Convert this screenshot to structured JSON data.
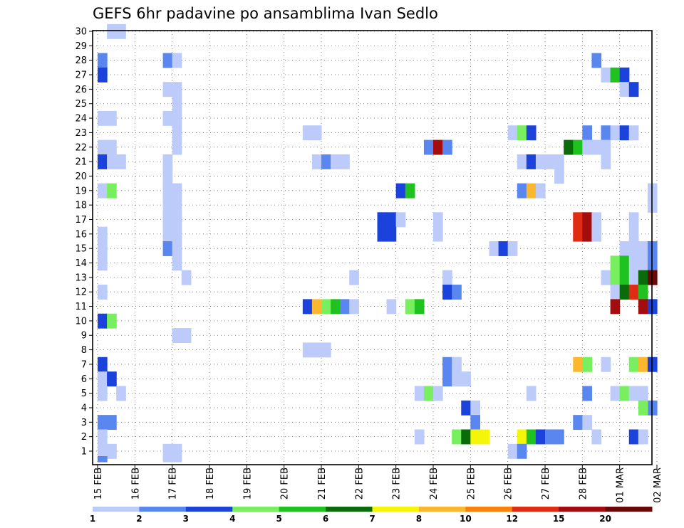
{
  "chart_data": {
    "type": "heatmap",
    "title": "GEFS 6hr padavine po ansamblima Ivan Sedlo",
    "xlabel": "",
    "ylabel": "",
    "x_tick_labels": [
      "15 FEB",
      "16 FEB",
      "17 FEB",
      "18 FEB",
      "19 FEB",
      "20 FEB",
      "21 FEB",
      "22 FEB",
      "23 FEB",
      "24 FEB",
      "25 FEB",
      "26 FEB",
      "27 FEB",
      "28 FEB",
      "01 MAR",
      "02 MAR"
    ],
    "y_tick_labels": [
      "1",
      "2",
      "3",
      "4",
      "5",
      "6",
      "7",
      "8",
      "9",
      "10",
      "11",
      "12",
      "13",
      "14",
      "15",
      "16",
      "17",
      "18",
      "19",
      "20",
      "21",
      "22",
      "23",
      "24",
      "25",
      "26",
      "27",
      "28",
      "29",
      "30"
    ],
    "y_range": [
      1,
      30
    ],
    "x_steps_per_day": 4,
    "x_total_steps": 60,
    "grid": "dotted",
    "colorbar": {
      "levels": [
        "1",
        "2",
        "3",
        "4",
        "5",
        "6",
        "7",
        "8",
        "10",
        "12",
        "15",
        "20"
      ],
      "colors": [
        "#bccbf9",
        "#5a86ef",
        "#1c42dc",
        "#78ef5f",
        "#1fc21e",
        "#0a6b0a",
        "#f5f50a",
        "#fbb82e",
        "#f8820c",
        "#e02c14",
        "#a40d0d",
        "#6b0707"
      ]
    },
    "cells": [
      [
        1,
        30,
        0
      ],
      [
        2,
        30,
        0
      ],
      [
        0,
        28,
        1
      ],
      [
        7,
        28,
        1
      ],
      [
        8,
        28,
        0
      ],
      [
        53,
        28,
        1
      ],
      [
        0,
        27,
        2
      ],
      [
        54,
        27,
        0
      ],
      [
        55,
        27,
        4
      ],
      [
        56,
        27,
        2
      ],
      [
        7,
        26,
        0
      ],
      [
        8,
        26,
        0
      ],
      [
        56,
        26,
        0
      ],
      [
        57,
        26,
        2
      ],
      [
        8,
        25,
        0
      ],
      [
        0,
        24,
        0
      ],
      [
        1,
        24,
        0
      ],
      [
        7,
        24,
        0
      ],
      [
        8,
        24,
        0
      ],
      [
        8,
        23,
        0
      ],
      [
        22,
        23,
        0
      ],
      [
        23,
        23,
        0
      ],
      [
        44,
        23,
        0
      ],
      [
        45,
        23,
        3
      ],
      [
        46,
        23,
        2
      ],
      [
        52,
        23,
        1
      ],
      [
        54,
        23,
        1
      ],
      [
        55,
        23,
        0
      ],
      [
        56,
        23,
        2
      ],
      [
        57,
        23,
        0
      ],
      [
        0,
        22,
        0
      ],
      [
        1,
        22,
        0
      ],
      [
        8,
        22,
        0
      ],
      [
        35,
        22,
        1
      ],
      [
        36,
        22,
        10
      ],
      [
        37,
        22,
        1
      ],
      [
        50,
        22,
        5
      ],
      [
        51,
        22,
        4
      ],
      [
        52,
        22,
        0
      ],
      [
        53,
        22,
        0
      ],
      [
        54,
        22,
        0
      ],
      [
        0,
        21,
        2
      ],
      [
        1,
        21,
        0
      ],
      [
        2,
        21,
        0
      ],
      [
        7,
        21,
        0
      ],
      [
        23,
        21,
        0
      ],
      [
        24,
        21,
        1
      ],
      [
        25,
        21,
        0
      ],
      [
        26,
        21,
        0
      ],
      [
        45,
        21,
        0
      ],
      [
        46,
        21,
        2
      ],
      [
        47,
        21,
        0
      ],
      [
        48,
        21,
        0
      ],
      [
        49,
        21,
        0
      ],
      [
        54,
        21,
        0
      ],
      [
        7,
        20,
        0
      ],
      [
        49,
        20,
        0
      ],
      [
        0,
        19,
        0
      ],
      [
        1,
        19,
        3
      ],
      [
        7,
        19,
        0
      ],
      [
        8,
        19,
        0
      ],
      [
        32,
        19,
        2
      ],
      [
        33,
        19,
        4
      ],
      [
        45,
        19,
        1
      ],
      [
        46,
        19,
        7
      ],
      [
        47,
        19,
        0
      ],
      [
        59,
        19,
        0
      ],
      [
        7,
        18,
        0
      ],
      [
        8,
        18,
        0
      ],
      [
        59,
        18,
        0
      ],
      [
        7,
        17,
        0
      ],
      [
        8,
        17,
        0
      ],
      [
        30,
        17,
        2
      ],
      [
        31,
        17,
        2
      ],
      [
        32,
        17,
        0
      ],
      [
        36,
        17,
        0
      ],
      [
        51,
        17,
        9
      ],
      [
        52,
        17,
        10
      ],
      [
        53,
        17,
        0
      ],
      [
        57,
        17,
        0
      ],
      [
        0,
        16,
        0
      ],
      [
        7,
        16,
        0
      ],
      [
        8,
        16,
        0
      ],
      [
        30,
        16,
        2
      ],
      [
        31,
        16,
        2
      ],
      [
        36,
        16,
        0
      ],
      [
        51,
        16,
        9
      ],
      [
        52,
        16,
        10
      ],
      [
        53,
        16,
        0
      ],
      [
        57,
        16,
        0
      ],
      [
        0,
        15,
        0
      ],
      [
        7,
        15,
        1
      ],
      [
        8,
        15,
        0
      ],
      [
        42,
        15,
        0
      ],
      [
        43,
        15,
        2
      ],
      [
        44,
        15,
        0
      ],
      [
        56,
        15,
        0
      ],
      [
        57,
        15,
        0
      ],
      [
        58,
        15,
        0
      ],
      [
        59,
        15,
        1
      ],
      [
        0,
        14,
        0
      ],
      [
        8,
        14,
        0
      ],
      [
        55,
        14,
        3
      ],
      [
        56,
        14,
        4
      ],
      [
        57,
        14,
        0
      ],
      [
        58,
        14,
        0
      ],
      [
        59,
        14,
        1
      ],
      [
        9,
        13,
        0
      ],
      [
        27,
        13,
        0
      ],
      [
        37,
        13,
        0
      ],
      [
        54,
        13,
        0
      ],
      [
        55,
        13,
        3
      ],
      [
        56,
        13,
        4
      ],
      [
        57,
        13,
        0
      ],
      [
        58,
        13,
        5
      ],
      [
        59,
        13,
        11
      ],
      [
        0,
        12,
        0
      ],
      [
        37,
        12,
        2
      ],
      [
        38,
        12,
        1
      ],
      [
        55,
        12,
        0
      ],
      [
        56,
        12,
        5
      ],
      [
        57,
        12,
        9
      ],
      [
        58,
        12,
        4
      ],
      [
        22,
        11,
        2
      ],
      [
        23,
        11,
        7
      ],
      [
        24,
        11,
        3
      ],
      [
        25,
        11,
        4
      ],
      [
        26,
        11,
        1
      ],
      [
        27,
        11,
        0
      ],
      [
        31,
        11,
        0
      ],
      [
        33,
        11,
        3
      ],
      [
        34,
        11,
        4
      ],
      [
        55,
        11,
        10
      ],
      [
        58,
        11,
        10
      ],
      [
        59,
        11,
        2
      ],
      [
        0,
        10,
        2
      ],
      [
        1,
        10,
        3
      ],
      [
        8,
        9,
        0
      ],
      [
        9,
        9,
        0
      ],
      [
        22,
        8,
        0
      ],
      [
        23,
        8,
        0
      ],
      [
        24,
        8,
        0
      ],
      [
        0,
        7,
        2
      ],
      [
        37,
        7,
        1
      ],
      [
        38,
        7,
        0
      ],
      [
        51,
        7,
        7
      ],
      [
        52,
        7,
        3
      ],
      [
        54,
        7,
        0
      ],
      [
        57,
        7,
        3
      ],
      [
        58,
        7,
        7
      ],
      [
        59,
        7,
        2
      ],
      [
        0,
        6,
        0
      ],
      [
        1,
        6,
        2
      ],
      [
        37,
        6,
        1
      ],
      [
        38,
        6,
        0
      ],
      [
        39,
        6,
        0
      ],
      [
        0,
        5,
        0
      ],
      [
        2,
        5,
        0
      ],
      [
        34,
        5,
        0
      ],
      [
        35,
        5,
        3
      ],
      [
        36,
        5,
        0
      ],
      [
        46,
        5,
        0
      ],
      [
        52,
        5,
        1
      ],
      [
        55,
        5,
        0
      ],
      [
        56,
        5,
        3
      ],
      [
        57,
        5,
        0
      ],
      [
        58,
        5,
        0
      ],
      [
        39,
        4,
        2
      ],
      [
        40,
        4,
        0
      ],
      [
        59,
        4,
        1
      ],
      [
        58,
        4,
        3
      ],
      [
        0,
        3,
        1
      ],
      [
        1,
        3,
        1
      ],
      [
        40,
        3,
        1
      ],
      [
        51,
        3,
        1
      ],
      [
        52,
        3,
        0
      ],
      [
        0,
        2,
        0
      ],
      [
        34,
        2,
        0
      ],
      [
        38,
        2,
        3
      ],
      [
        39,
        2,
        5
      ],
      [
        40,
        2,
        6
      ],
      [
        41,
        2,
        6
      ],
      [
        45,
        2,
        6
      ],
      [
        46,
        2,
        4
      ],
      [
        47,
        2,
        2
      ],
      [
        48,
        2,
        1
      ],
      [
        49,
        2,
        1
      ],
      [
        53,
        2,
        0
      ],
      [
        57,
        2,
        2
      ],
      [
        58,
        2,
        0
      ],
      [
        0,
        1,
        0
      ],
      [
        1,
        1,
        0
      ],
      [
        7,
        1,
        0
      ],
      [
        8,
        1,
        0
      ],
      [
        44,
        1,
        0
      ],
      [
        45,
        1,
        1
      ],
      [
        0,
        0,
        1
      ],
      [
        7,
        0,
        0
      ],
      [
        8,
        0,
        0
      ]
    ]
  }
}
